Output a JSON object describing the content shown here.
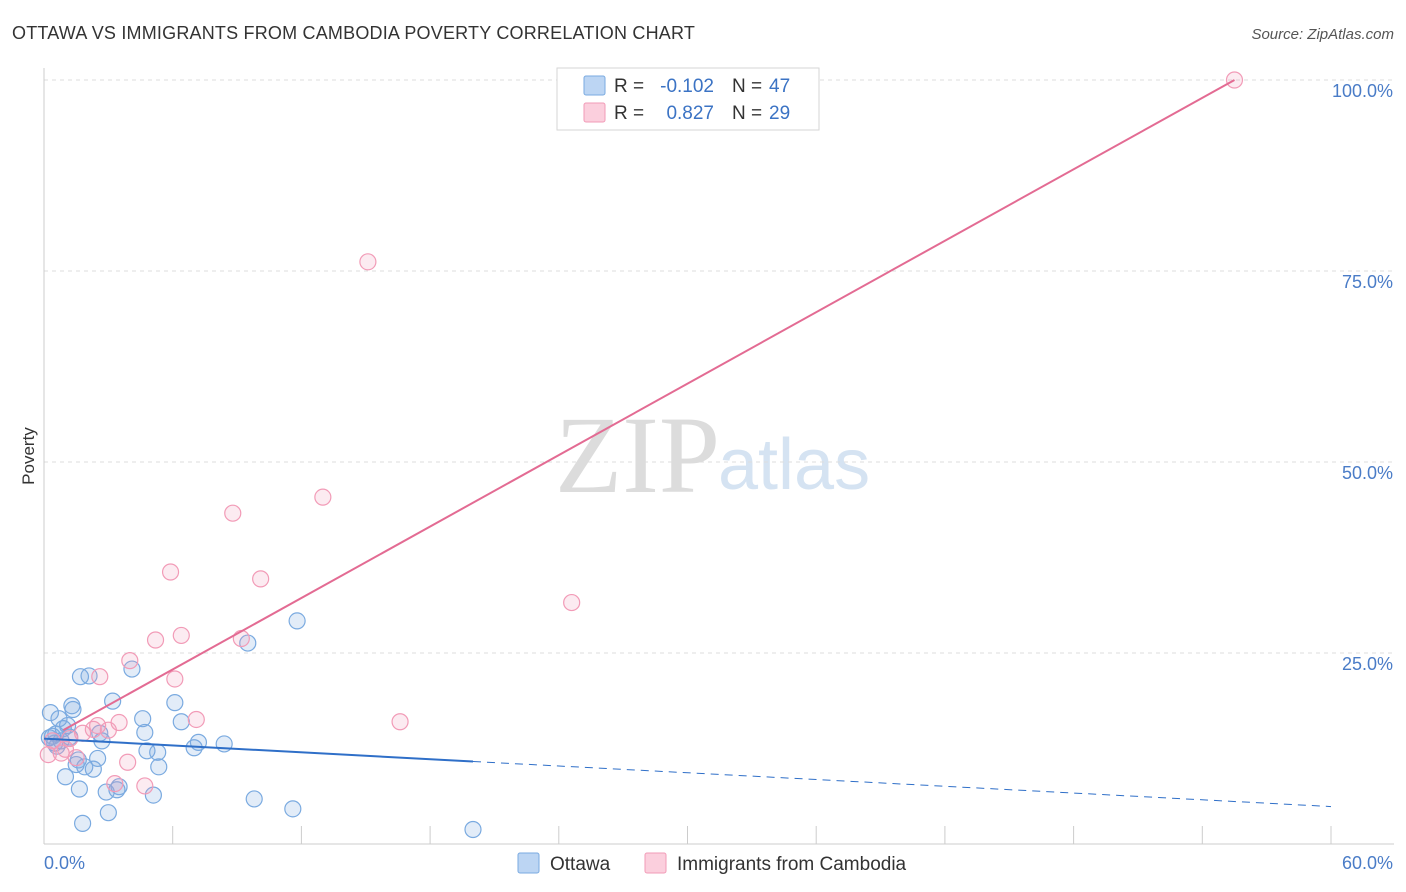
{
  "chart_data": {
    "type": "scatter",
    "title": "OTTAWA VS IMMIGRANTS FROM CAMBODIA POVERTY CORRELATION CHART",
    "source": "Source: ZipAtlas.com",
    "ylabel": "Poverty",
    "xlim": [
      0,
      60
    ],
    "ylim": [
      0,
      100
    ],
    "x_tick_labels": [
      "0.0%",
      "60.0%"
    ],
    "y_ticks": [
      25,
      50,
      75,
      100
    ],
    "y_tick_labels": [
      "25.0%",
      "50.0%",
      "75.0%",
      "100.0%"
    ],
    "watermark": {
      "part1": "ZIP",
      "part2": "atlas"
    },
    "legend_stats": [
      {
        "r_label": "R =",
        "r_value": "-0.102",
        "n_label": "N =",
        "n_value": "47"
      },
      {
        "r_label": "R =",
        "r_value": "0.827",
        "n_label": "N =",
        "n_value": "29"
      }
    ],
    "series": [
      {
        "name": "Ottawa",
        "color": "#7aaae0",
        "line_color": "#2f6fc8",
        "trend": {
          "x0": 0,
          "y0": 13.8,
          "x1": 20,
          "y1": 10.8,
          "dash_to_x": 60,
          "dash_to_y": 4.9
        },
        "points": [
          [
            0.3,
            17.2
          ],
          [
            0.4,
            14.1
          ],
          [
            0.5,
            13.2
          ],
          [
            0.6,
            12.8
          ],
          [
            0.7,
            16.4
          ],
          [
            0.8,
            13.5
          ],
          [
            0.9,
            15.1
          ],
          [
            1.0,
            8.8
          ],
          [
            1.1,
            15.5
          ],
          [
            1.2,
            14.0
          ],
          [
            1.3,
            18.1
          ],
          [
            1.35,
            17.6
          ],
          [
            1.5,
            10.4
          ],
          [
            1.6,
            11.0
          ],
          [
            1.65,
            7.2
          ],
          [
            1.7,
            21.9
          ],
          [
            1.8,
            2.7
          ],
          [
            1.9,
            10.1
          ],
          [
            2.1,
            22.0
          ],
          [
            2.3,
            9.8
          ],
          [
            2.5,
            11.2
          ],
          [
            2.6,
            14.5
          ],
          [
            2.7,
            13.5
          ],
          [
            2.9,
            6.8
          ],
          [
            3.0,
            4.1
          ],
          [
            3.2,
            18.7
          ],
          [
            3.4,
            7.1
          ],
          [
            3.5,
            7.5
          ],
          [
            4.1,
            22.9
          ],
          [
            4.6,
            16.4
          ],
          [
            4.7,
            14.6
          ],
          [
            4.8,
            12.2
          ],
          [
            5.1,
            6.4
          ],
          [
            5.3,
            12.0
          ],
          [
            5.35,
            10.1
          ],
          [
            6.1,
            18.5
          ],
          [
            6.4,
            16.0
          ],
          [
            7.0,
            12.6
          ],
          [
            7.2,
            13.3
          ],
          [
            8.4,
            13.1
          ],
          [
            9.5,
            26.3
          ],
          [
            9.8,
            5.9
          ],
          [
            11.6,
            4.6
          ],
          [
            11.8,
            29.2
          ],
          [
            20.0,
            1.9
          ],
          [
            0.25,
            13.9
          ],
          [
            0.55,
            14.4
          ]
        ]
      },
      {
        "name": "Immigrants from Cambodia",
        "color": "#f29bb7",
        "line_color": "#e36b93",
        "trend": {
          "x0": 0.9,
          "y0": 14.9,
          "x1": 55.5,
          "y1": 100
        },
        "points": [
          [
            0.2,
            11.7
          ],
          [
            0.4,
            13.5
          ],
          [
            0.8,
            11.9
          ],
          [
            1.0,
            12.4
          ],
          [
            1.2,
            13.8
          ],
          [
            1.5,
            11.3
          ],
          [
            1.8,
            14.5
          ],
          [
            2.3,
            15.0
          ],
          [
            2.5,
            15.5
          ],
          [
            2.6,
            21.9
          ],
          [
            3.0,
            14.9
          ],
          [
            3.3,
            7.9
          ],
          [
            3.5,
            15.9
          ],
          [
            3.9,
            10.7
          ],
          [
            4.0,
            24.0
          ],
          [
            4.7,
            7.6
          ],
          [
            5.2,
            26.7
          ],
          [
            5.9,
            35.6
          ],
          [
            6.1,
            21.6
          ],
          [
            6.4,
            27.3
          ],
          [
            7.1,
            16.3
          ],
          [
            8.8,
            43.3
          ],
          [
            9.2,
            26.9
          ],
          [
            10.1,
            34.7
          ],
          [
            13.0,
            45.4
          ],
          [
            15.1,
            76.2
          ],
          [
            16.6,
            16.0
          ],
          [
            24.6,
            31.6
          ],
          [
            55.5,
            100.0
          ]
        ]
      }
    ]
  }
}
